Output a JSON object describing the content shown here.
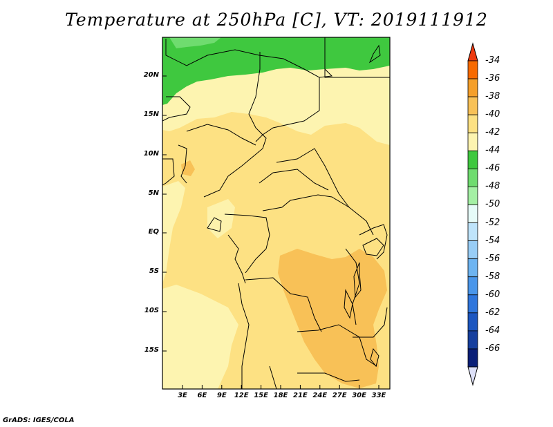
{
  "title": "Temperature at 250hPa [C], VT: 2019111912",
  "credit": "GrADS: IGES/COLA",
  "map": {
    "lat_labels": [
      "20N",
      "15N",
      "10N",
      "5N",
      "EQ",
      "5S",
      "10S",
      "15S"
    ],
    "lon_labels": [
      "3E",
      "6E",
      "9E",
      "12E",
      "15E",
      "18E",
      "21E",
      "24E",
      "27E",
      "30E",
      "33E"
    ],
    "field_colors": {
      "t44_46": "#3fc83f",
      "t46_48": "#6fdc6f",
      "t42_44": "#fdf4b0",
      "t40_42": "#fde183",
      "t38_40": "#f8c157",
      "t36_38": "#f59f2a"
    }
  },
  "colorbar": {
    "labels": [
      "-34",
      "-36",
      "-38",
      "-40",
      "-42",
      "-44",
      "-46",
      "-48",
      "-50",
      "-52",
      "-54",
      "-56",
      "-58",
      "-60",
      "-62",
      "-64",
      "-66"
    ],
    "colors": [
      "#ee3a10",
      "#f76a00",
      "#f59f2a",
      "#f8c157",
      "#fde183",
      "#fdf4b0",
      "#3fc83f",
      "#6fdc6f",
      "#a4f0a4",
      "#e6fbf8",
      "#bfe4fb",
      "#98cdf6",
      "#6db4f1",
      "#4a96ea",
      "#2f76dc",
      "#1c56c0",
      "#163f9e",
      "#0a1f78",
      "#dde0f8"
    ]
  }
}
